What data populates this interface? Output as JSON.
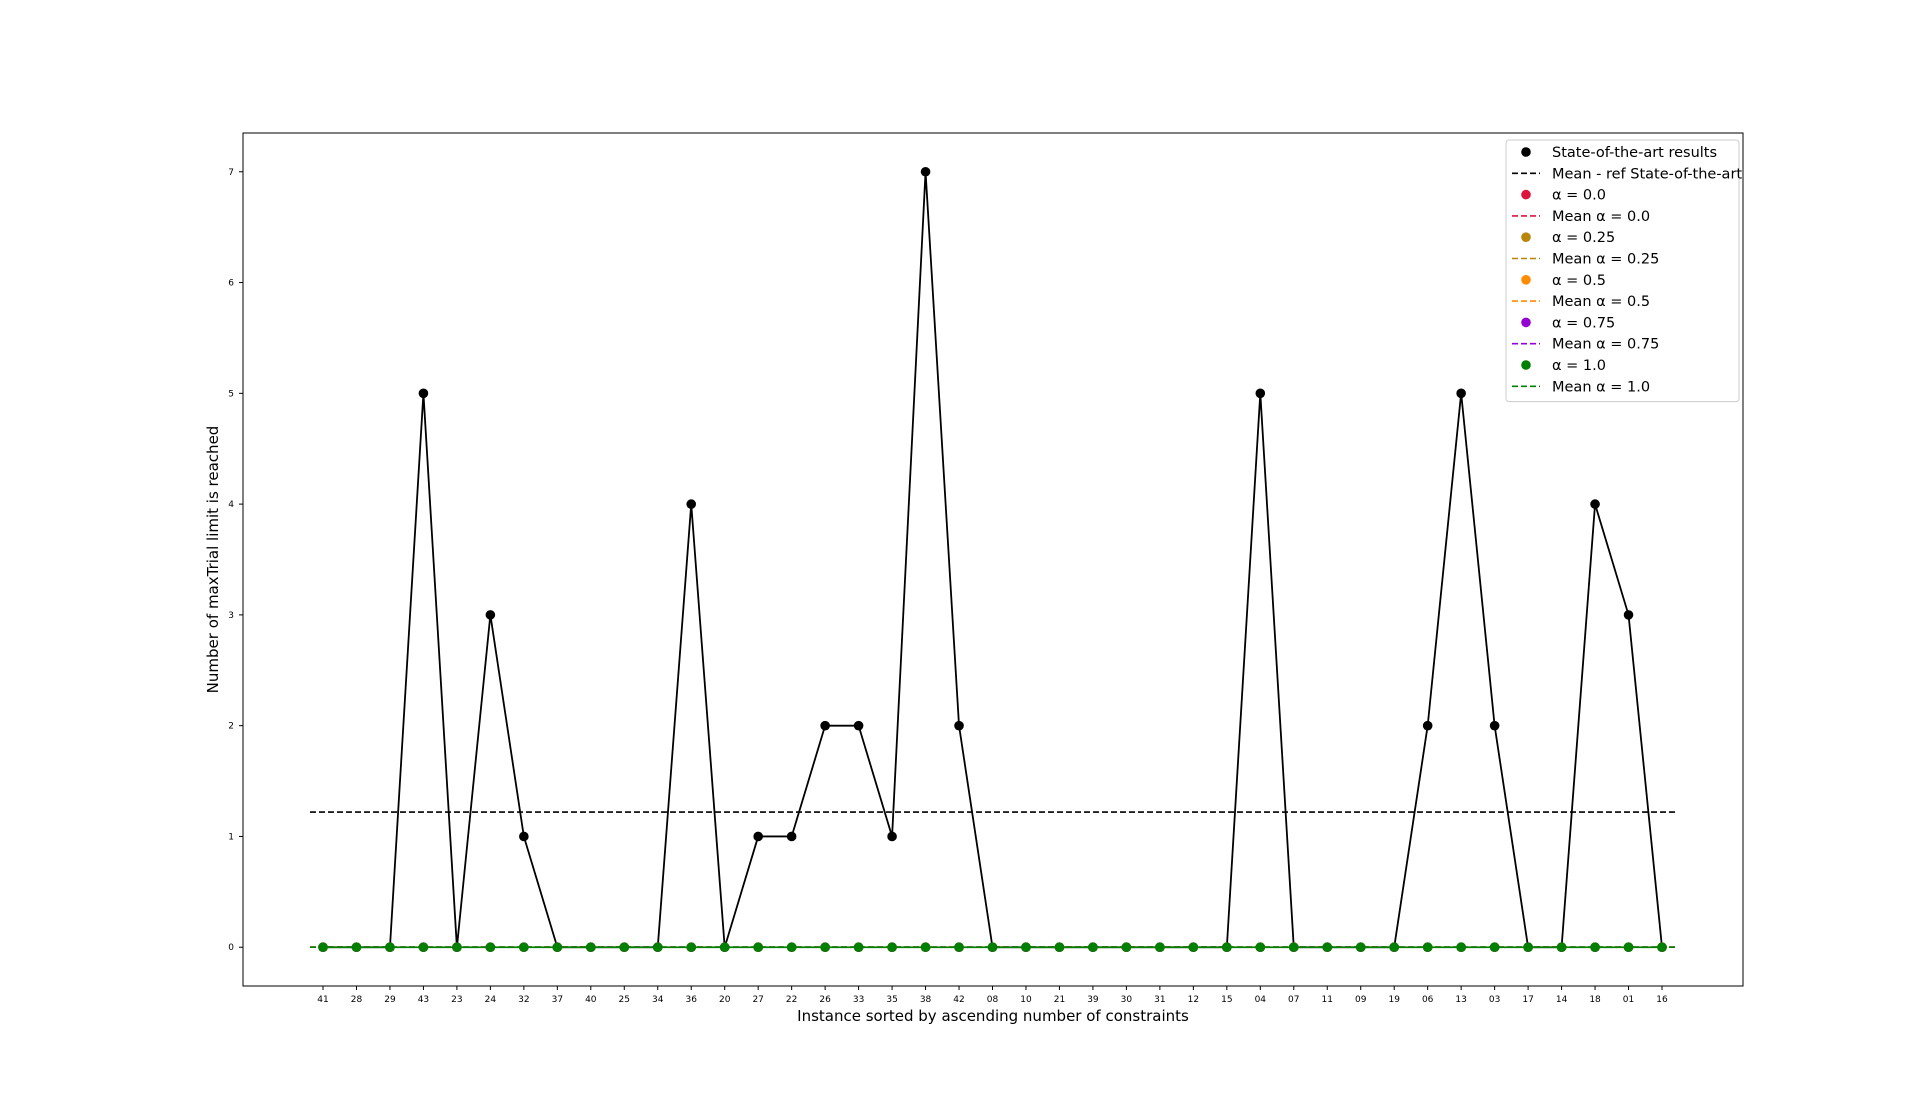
{
  "chart_data": {
    "type": "line",
    "title": "",
    "xlabel": "Instance sorted by ascending number of constraints",
    "ylabel": "Number of maxTrial limit is reached",
    "categories": [
      "41",
      "28",
      "29",
      "43",
      "23",
      "24",
      "32",
      "37",
      "40",
      "25",
      "34",
      "36",
      "20",
      "27",
      "22",
      "26",
      "33",
      "35",
      "38",
      "42",
      "08",
      "10",
      "21",
      "39",
      "30",
      "31",
      "12",
      "15",
      "04",
      "07",
      "11",
      "09",
      "19",
      "06",
      "13",
      "03",
      "17",
      "14",
      "18",
      "01",
      "16"
    ],
    "ylim": [
      -0.35,
      7.35
    ],
    "yticks": [
      0,
      1,
      2,
      3,
      4,
      5,
      6,
      7
    ],
    "grid": false,
    "legend_position": "top-right",
    "series": [
      {
        "name": "State-of-the-art results",
        "kind": "points+line",
        "color": "#000000",
        "values": [
          0,
          0,
          0,
          5,
          0,
          3,
          1,
          0,
          0,
          0,
          0,
          4,
          0,
          1,
          1,
          2,
          2,
          1,
          7,
          2,
          0,
          0,
          0,
          0,
          0,
          0,
          0,
          0,
          5,
          0,
          0,
          0,
          0,
          2,
          5,
          2,
          0,
          0,
          4,
          3,
          0
        ]
      },
      {
        "name": "Mean - ref State-of-the-art",
        "kind": "mean",
        "color": "#000000",
        "value": 1.22
      },
      {
        "name": "α = 0.0",
        "kind": "points",
        "color": "#dc143c",
        "values": [
          0,
          0,
          0,
          0,
          0,
          0,
          0,
          0,
          0,
          0,
          0,
          0,
          0,
          0,
          0,
          0,
          0,
          0,
          0,
          0,
          0,
          0,
          0,
          0,
          0,
          0,
          0,
          0,
          0,
          0,
          0,
          0,
          0,
          0,
          0,
          0,
          0,
          0,
          0,
          0,
          0
        ]
      },
      {
        "name": "Mean α = 0.0",
        "kind": "mean",
        "color": "#dc143c",
        "value": 0
      },
      {
        "name": "α = 0.25",
        "kind": "points",
        "color": "#b8860b",
        "values": [
          0,
          0,
          0,
          0,
          0,
          0,
          0,
          0,
          0,
          0,
          0,
          0,
          0,
          0,
          0,
          0,
          0,
          0,
          0,
          0,
          0,
          0,
          0,
          0,
          0,
          0,
          0,
          0,
          0,
          0,
          0,
          0,
          0,
          0,
          0,
          0,
          0,
          0,
          0,
          0,
          0
        ]
      },
      {
        "name": "Mean α = 0.25",
        "kind": "mean",
        "color": "#b8860b",
        "value": 0
      },
      {
        "name": "α = 0.5",
        "kind": "points",
        "color": "#ff8c00",
        "values": [
          0,
          0,
          0,
          0,
          0,
          0,
          0,
          0,
          0,
          0,
          0,
          0,
          0,
          0,
          0,
          0,
          0,
          0,
          0,
          0,
          0,
          0,
          0,
          0,
          0,
          0,
          0,
          0,
          0,
          0,
          0,
          0,
          0,
          0,
          0,
          0,
          0,
          0,
          0,
          0,
          0
        ]
      },
      {
        "name": "Mean α = 0.5",
        "kind": "mean",
        "color": "#ff8c00",
        "value": 0
      },
      {
        "name": "α = 0.75",
        "kind": "points",
        "color": "#9400d3",
        "values": [
          0,
          0,
          0,
          0,
          0,
          0,
          0,
          0,
          0,
          0,
          0,
          0,
          0,
          0,
          0,
          0,
          0,
          0,
          0,
          0,
          0,
          0,
          0,
          0,
          0,
          0,
          0,
          0,
          0,
          0,
          0,
          0,
          0,
          0,
          0,
          0,
          0,
          0,
          0,
          0,
          0
        ]
      },
      {
        "name": "Mean α = 0.75",
        "kind": "mean",
        "color": "#9400d3",
        "value": 0
      },
      {
        "name": "α = 1.0",
        "kind": "points+line",
        "color": "#008000",
        "values": [
          0,
          0,
          0,
          0,
          0,
          0,
          0,
          0,
          0,
          0,
          0,
          0,
          0,
          0,
          0,
          0,
          0,
          0,
          0,
          0,
          0,
          0,
          0,
          0,
          0,
          0,
          0,
          0,
          0,
          0,
          0,
          0,
          0,
          0,
          0,
          0,
          0,
          0,
          0,
          0,
          0
        ]
      },
      {
        "name": "Mean α = 1.0",
        "kind": "mean",
        "color": "#008000",
        "value": 0
      }
    ]
  }
}
